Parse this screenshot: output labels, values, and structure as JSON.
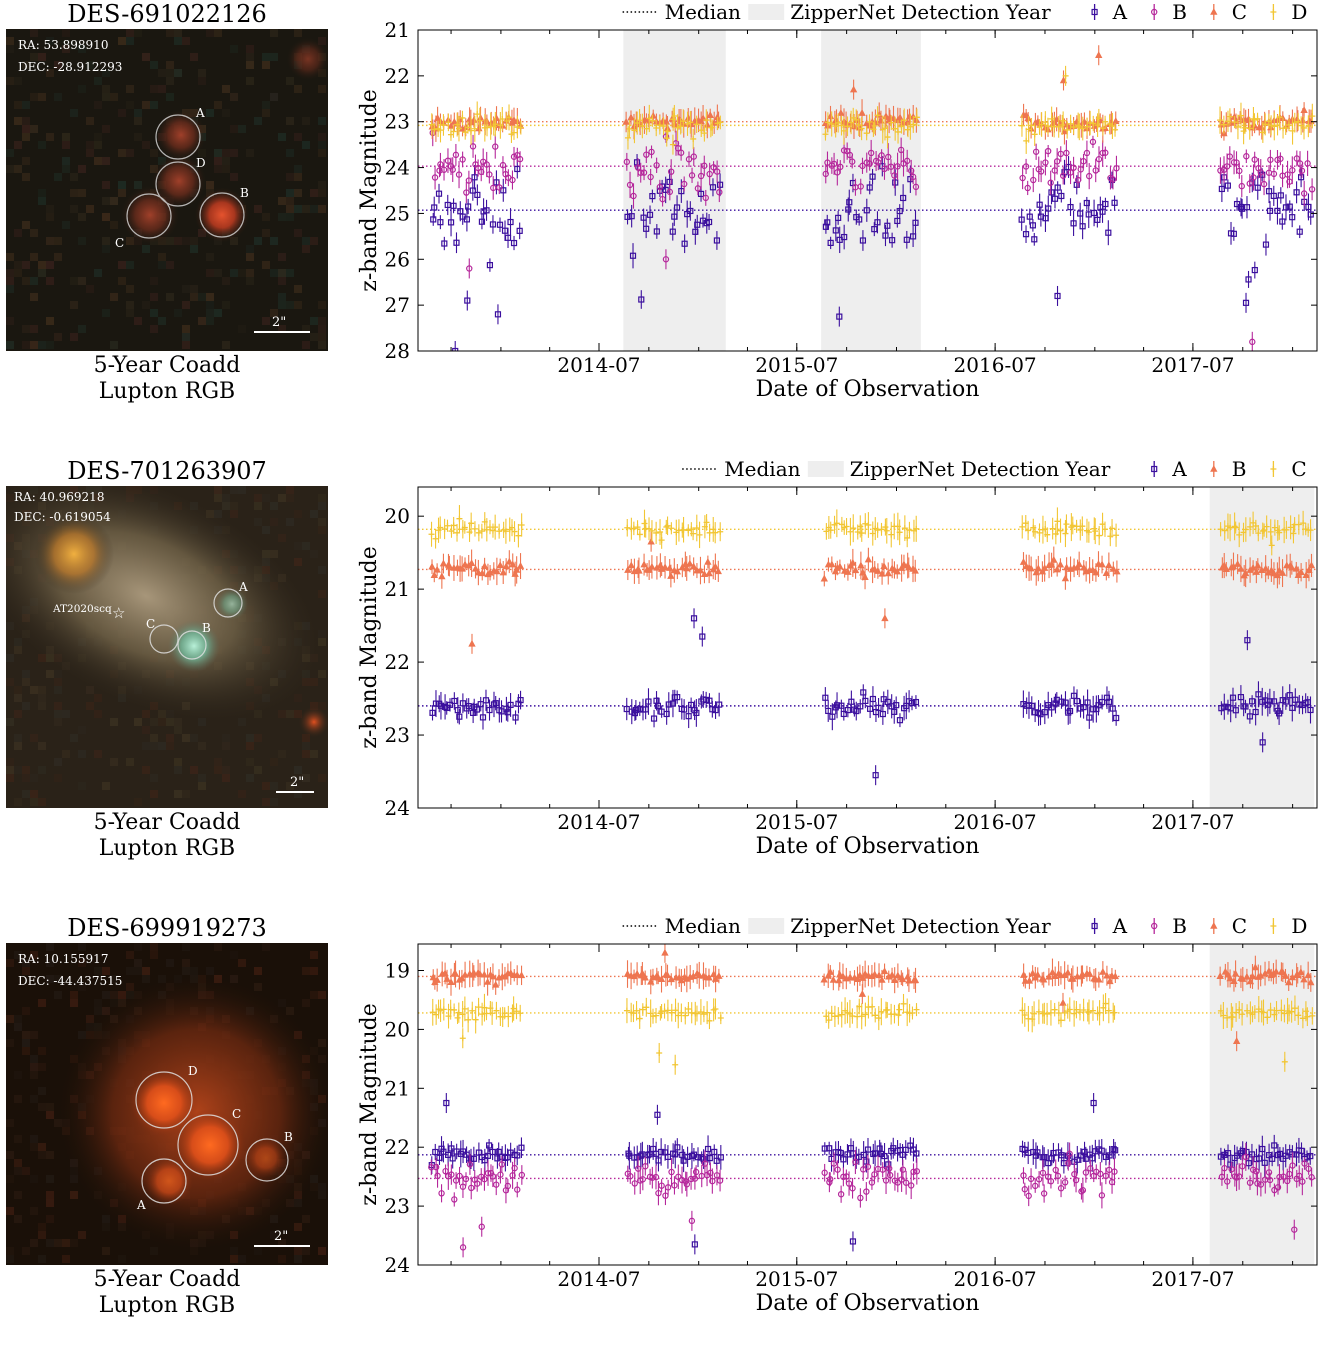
{
  "figure": {
    "panels": [
      {
        "object_name": "DES-691022126",
        "ra_label": "RA: 53.898910",
        "dec_label": "DEC: -28.912293",
        "caption_line1": "5-Year Coadd",
        "caption_line2": "Lupton RGB",
        "scale_label": "2\"",
        "image_labels": [
          "A",
          "D",
          "B",
          "C"
        ],
        "image_colors": {
          "background": "#1a1710",
          "source": "#d2482a",
          "circle": "#d0d0d0"
        }
      },
      {
        "object_name": "DES-701263907",
        "ra_label": "RA: 40.969218",
        "dec_label": "DEC: -0.619054",
        "caption_line1": "5-Year Coadd",
        "caption_line2": "Lupton RGB",
        "scale_label": "2\"",
        "image_labels": [
          "A",
          "C",
          "B"
        ],
        "transient_label": "AT2020scq",
        "image_colors": {
          "background": "#2a2218",
          "galaxy": "#8a7a58",
          "bright_star": "#e6a33c",
          "source": "#7ec8a3",
          "circle": "#e0e0e0"
        }
      },
      {
        "object_name": "DES-699919273",
        "ra_label": "RA: 10.155917",
        "dec_label": "DEC: -44.437515",
        "caption_line1": "5-Year Coadd",
        "caption_line2": "Lupton RGB",
        "scale_label": "2\"",
        "image_labels": [
          "D",
          "C",
          "B",
          "A"
        ],
        "image_colors": {
          "background": "#1a1008",
          "source": "#ff5a1a",
          "circle": "#e0e0e0"
        }
      }
    ]
  },
  "chart_data": [
    {
      "type": "scatter",
      "title": "",
      "xlabel": "Date of Observation",
      "ylabel": "z-band Magnitude",
      "x_ticks": [
        "2014-07",
        "2015-07",
        "2016-07",
        "2017-07"
      ],
      "xlim": [
        "2013-08-01",
        "2018-02-15"
      ],
      "ylim": [
        28,
        21
      ],
      "y_ticks": [
        21,
        22,
        23,
        24,
        25,
        26,
        27,
        28
      ],
      "legend": {
        "position": "top",
        "median_label": "Median",
        "shade_label": "ZipperNet Detection Year"
      },
      "detection_years": [
        [
          "2014-08-15",
          "2015-02-20"
        ],
        [
          "2015-08-15",
          "2016-02-15"
        ]
      ],
      "seasons": [
        [
          "2013-08-25",
          "2014-02-10"
        ],
        [
          "2014-08-20",
          "2015-02-12"
        ],
        [
          "2015-08-20",
          "2016-02-10"
        ],
        [
          "2016-08-18",
          "2017-02-12"
        ],
        [
          "2017-08-20",
          "2018-02-08"
        ]
      ],
      "series": [
        {
          "name": "A",
          "color": "#3b0f9e",
          "marker": "square",
          "median": 24.93,
          "scatter": 0.75,
          "bias": 0.5,
          "outliers": [
            [
              0,
              27.2
            ],
            [
              0,
              26.9
            ],
            [
              3,
              26.8
            ],
            [
              4,
              26.95
            ],
            [
              2,
              27.25
            ],
            [
              0,
              28.0
            ]
          ]
        },
        {
          "name": "B",
          "color": "#b5279b",
          "marker": "circle",
          "median": 23.97,
          "scatter": 0.45,
          "bias": 0.4,
          "outliers": [
            [
              0,
              26.2
            ],
            [
              1,
              26.0
            ],
            [
              4,
              27.8
            ]
          ]
        },
        {
          "name": "C",
          "color": "#ee7550",
          "marker": "triangle",
          "median": 23.0,
          "scatter": 0.15,
          "bias": 0.05,
          "outliers": [
            [
              3,
              21.55
            ],
            [
              3,
              22.1
            ],
            [
              2,
              22.3
            ]
          ]
        },
        {
          "name": "D",
          "color": "#f2c634",
          "marker": "plus",
          "median": 23.08,
          "scatter": 0.2,
          "bias": 0.05,
          "outliers": [
            [
              1,
              23.5
            ],
            [
              3,
              22.0
            ]
          ]
        }
      ]
    },
    {
      "type": "scatter",
      "title": "",
      "xlabel": "Date of Observation",
      "ylabel": "z-band Magnitude",
      "x_ticks": [
        "2014-07",
        "2015-07",
        "2016-07",
        "2017-07"
      ],
      "xlim": [
        "2013-08-01",
        "2018-02-15"
      ],
      "ylim": [
        24,
        19.6
      ],
      "y_ticks": [
        20,
        21,
        22,
        23,
        24
      ],
      "legend": {
        "position": "top",
        "median_label": "Median",
        "shade_label": "ZipperNet Detection Year"
      },
      "detection_years": [
        [
          "2017-08-01",
          "2018-02-10"
        ]
      ],
      "seasons": [
        [
          "2013-08-25",
          "2014-02-10"
        ],
        [
          "2014-08-20",
          "2015-02-12"
        ],
        [
          "2015-08-20",
          "2016-02-10"
        ],
        [
          "2016-08-18",
          "2017-02-12"
        ],
        [
          "2017-08-20",
          "2018-02-08"
        ]
      ],
      "series": [
        {
          "name": "A",
          "color": "#3b0f9e",
          "marker": "square",
          "median": 22.6,
          "scatter": 0.13,
          "bias": 0.05,
          "outliers": [
            [
              1,
              21.65
            ],
            [
              1,
              21.4
            ],
            [
              2,
              23.55
            ],
            [
              4,
              21.7
            ],
            [
              4,
              23.1
            ]
          ]
        },
        {
          "name": "B",
          "color": "#ee7550",
          "marker": "triangle",
          "median": 20.73,
          "scatter": 0.09,
          "bias": 0.0,
          "outliers": [
            [
              0,
              21.75
            ],
            [
              2,
              21.4
            ],
            [
              1,
              20.35
            ]
          ]
        },
        {
          "name": "C",
          "color": "#f2c634",
          "marker": "plus",
          "median": 20.18,
          "scatter": 0.09,
          "bias": 0.0,
          "outliers": [
            [
              4,
              20.4
            ]
          ]
        }
      ]
    },
    {
      "type": "scatter",
      "title": "",
      "xlabel": "Date of Observation",
      "ylabel": "z-band Magnitude",
      "x_ticks": [
        "2014-07",
        "2015-07",
        "2016-07",
        "2017-07"
      ],
      "xlim": [
        "2013-08-01",
        "2018-02-15"
      ],
      "ylim": [
        24,
        18.55
      ],
      "y_ticks": [
        19,
        20,
        21,
        22,
        23,
        24
      ],
      "legend": {
        "position": "top",
        "median_label": "Median",
        "shade_label": "ZipperNet Detection Year"
      },
      "detection_years": [
        [
          "2017-08-01",
          "2018-02-10"
        ]
      ],
      "seasons": [
        [
          "2013-08-25",
          "2014-02-10"
        ],
        [
          "2014-08-20",
          "2015-02-12"
        ],
        [
          "2015-08-20",
          "2016-02-10"
        ],
        [
          "2016-08-18",
          "2017-02-12"
        ],
        [
          "2017-08-20",
          "2018-02-08"
        ]
      ],
      "series": [
        {
          "name": "A",
          "color": "#3b0f9e",
          "marker": "square",
          "median": 22.13,
          "scatter": 0.13,
          "bias": 0.05,
          "outliers": [
            [
              0,
              21.25
            ],
            [
              1,
              21.45
            ],
            [
              1,
              23.65
            ],
            [
              2,
              23.6
            ],
            [
              3,
              21.25
            ]
          ]
        },
        {
          "name": "B",
          "color": "#b5279b",
          "marker": "circle",
          "median": 22.53,
          "scatter": 0.25,
          "bias": 0.1,
          "outliers": [
            [
              0,
              23.35
            ],
            [
              0,
              23.7
            ],
            [
              1,
              23.25
            ],
            [
              4,
              23.4
            ]
          ]
        },
        {
          "name": "C",
          "color": "#ee7550",
          "marker": "triangle",
          "median": 19.1,
          "scatter": 0.09,
          "bias": 0.0,
          "outliers": [
            [
              1,
              18.7
            ],
            [
              4,
              20.2
            ],
            [
              2,
              19.4
            ],
            [
              3,
              19.55
            ]
          ]
        },
        {
          "name": "D",
          "color": "#f2c634",
          "marker": "plus",
          "median": 19.72,
          "scatter": 0.1,
          "bias": 0.0,
          "outliers": [
            [
              1,
              20.6
            ],
            [
              1,
              20.4
            ],
            [
              4,
              20.55
            ],
            [
              0,
              20.15
            ]
          ]
        }
      ]
    }
  ]
}
